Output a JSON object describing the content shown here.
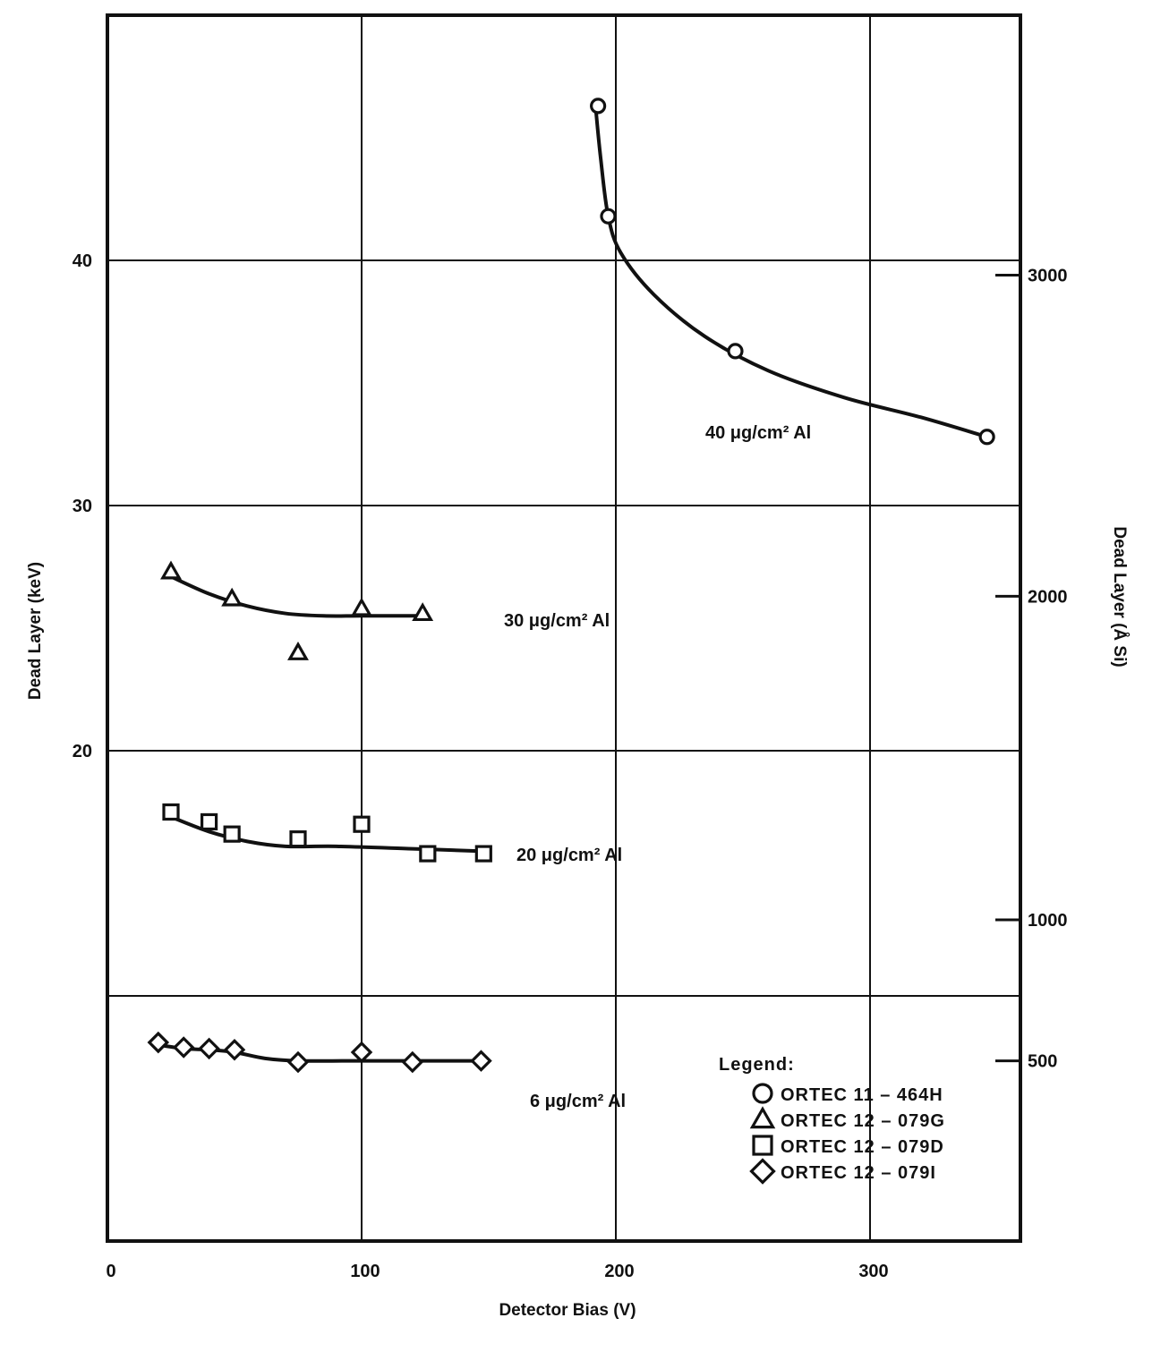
{
  "chart_data": {
    "type": "scatter",
    "xlabel": "Detector Bias (V)",
    "ylabel": "Dead Layer (keV)",
    "ylabel_right": "Dead Layer (Å Si)",
    "xlim": [
      0,
      360
    ],
    "ylim": [
      0,
      50
    ],
    "x_ticks": [
      0,
      100,
      200,
      300
    ],
    "y_ticks": [
      20,
      30,
      40
    ],
    "y_gridlines": [
      10,
      20,
      30,
      40
    ],
    "x_tick_labels": [
      "0",
      "100",
      "200",
      "300"
    ],
    "y_tick_labels": [
      "20",
      "30",
      "40"
    ],
    "right_ticks": [
      {
        "label": "3000",
        "y": 39.4
      },
      {
        "label": "2000",
        "y": 26.3
      },
      {
        "label": "1000",
        "y": 13.1
      },
      {
        "label": "500",
        "y": 7.35
      }
    ],
    "grid": true,
    "legend_title": "Legend:",
    "legend_position": "bottom-right",
    "series": [
      {
        "name": "ORTEC 11 – 464H",
        "marker": "circle",
        "annotation": "40 μg/cm² Al",
        "x": [
          193,
          197,
          247,
          346
        ],
        "y": [
          46.3,
          41.8,
          36.3,
          32.8
        ],
        "fit_x": [
          192,
          194,
          197,
          202,
          215,
          235,
          260,
          290,
          320,
          346
        ],
        "fit_y": [
          46.3,
          44.2,
          41.8,
          40.3,
          38.6,
          36.9,
          35.5,
          34.4,
          33.6,
          32.8
        ]
      },
      {
        "name": "ORTEC 12 – 079G",
        "marker": "triangle",
        "annotation": "30 μg/cm² Al",
        "x": [
          25,
          49,
          75,
          100,
          124
        ],
        "y": [
          27.3,
          26.2,
          24.0,
          25.8,
          25.6
        ],
        "fit_x": [
          25,
          40,
          55,
          70,
          85,
          100,
          124
        ],
        "fit_y": [
          27.1,
          26.4,
          25.9,
          25.6,
          25.5,
          25.5,
          25.5
        ]
      },
      {
        "name": "ORTEC 12 – 079D",
        "marker": "square",
        "annotation": "20 μg/cm² Al",
        "x": [
          25,
          40,
          49,
          75,
          100,
          126,
          148
        ],
        "y": [
          17.5,
          17.1,
          16.6,
          16.4,
          17.0,
          15.8,
          15.8
        ],
        "fit_x": [
          25,
          40,
          55,
          70,
          90,
          120,
          148
        ],
        "fit_y": [
          17.3,
          16.7,
          16.3,
          16.1,
          16.1,
          16.0,
          15.9
        ]
      },
      {
        "name": "ORTEC 12 – 079I",
        "marker": "diamond",
        "annotation": "6 μg/cm² Al",
        "x": [
          20,
          30,
          40,
          50,
          75,
          100,
          120,
          147
        ],
        "y": [
          8.1,
          7.9,
          7.85,
          7.8,
          7.3,
          7.7,
          7.3,
          7.35
        ],
        "fit_x": [
          20,
          30,
          40,
          50,
          62,
          75,
          100,
          147
        ],
        "fit_y": [
          8.0,
          7.85,
          7.8,
          7.7,
          7.45,
          7.35,
          7.35,
          7.35
        ]
      }
    ]
  }
}
